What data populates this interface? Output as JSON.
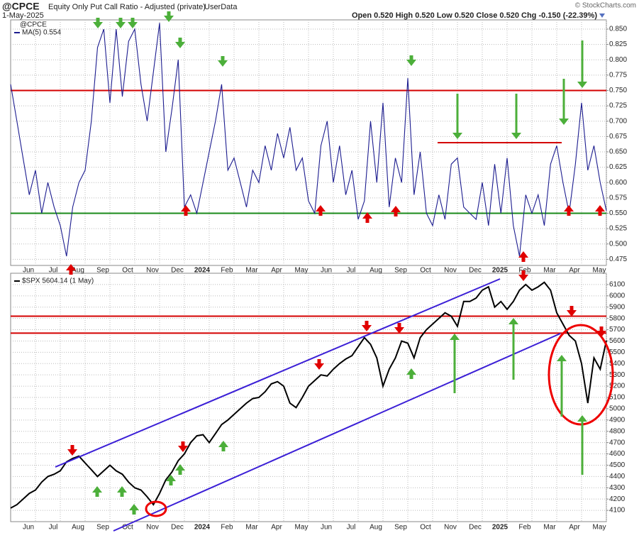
{
  "chart_data": [
    {
      "type": "line",
      "title": "@CPCE",
      "subtitle": "Equity Only Put Call Ratio - Adjusted (private)",
      "source": "UserData",
      "date": "1-May-2025",
      "credit": "© StockCharts.com",
      "ohlc": "Open 0.520 High 0.520 Low 0.520 Close 0.520 Chg -0.150 (-22.39%)",
      "legend_title": "@CPCE",
      "categories": [
        null,
        null,
        null,
        null,
        "Jun",
        null,
        null,
        null,
        "Jul",
        null,
        null,
        null,
        "Aug",
        null,
        null,
        null,
        "Sep",
        null,
        null,
        null,
        "Oct",
        null,
        null,
        null,
        "Nov",
        null,
        null,
        null,
        "Dec",
        null,
        null,
        null,
        "2024",
        null,
        null,
        null,
        "Feb",
        null,
        null,
        null,
        "Mar",
        null,
        null,
        null,
        "Apr",
        null,
        null,
        null,
        "May",
        null,
        null,
        null,
        "Jun",
        null,
        null,
        null,
        "Jul",
        null,
        null,
        null,
        "Aug",
        null,
        null,
        null,
        "Sep",
        null,
        null,
        null,
        "Oct",
        null,
        null,
        null,
        "Nov",
        null,
        null,
        null,
        "Dec",
        null,
        null,
        null,
        "2025",
        null,
        null,
        null,
        "Feb",
        null,
        null,
        null,
        "Mar",
        null,
        null,
        null,
        "Apr",
        null,
        null,
        null,
        "May"
      ],
      "series": [
        {
          "name": "MA(5) 0.554",
          "color": "#1c1c8f",
          "values": [
            0.76,
            0.7,
            0.64,
            0.58,
            0.62,
            0.55,
            0.6,
            0.56,
            0.53,
            0.48,
            0.56,
            0.6,
            0.62,
            0.7,
            0.82,
            0.85,
            0.73,
            0.85,
            0.74,
            0.83,
            0.85,
            0.76,
            0.7,
            0.78,
            0.86,
            0.65,
            0.72,
            0.8,
            0.56,
            0.58,
            0.55,
            0.6,
            0.65,
            0.7,
            0.76,
            0.62,
            0.64,
            0.6,
            0.56,
            0.62,
            0.6,
            0.66,
            0.62,
            0.68,
            0.64,
            0.69,
            0.62,
            0.64,
            0.57,
            0.55,
            0.66,
            0.7,
            0.6,
            0.66,
            0.58,
            0.62,
            0.54,
            0.57,
            0.7,
            0.6,
            0.73,
            0.56,
            0.64,
            0.6,
            0.77,
            0.58,
            0.65,
            0.55,
            0.53,
            0.58,
            0.54,
            0.63,
            0.64,
            0.56,
            0.55,
            0.54,
            0.6,
            0.53,
            0.63,
            0.55,
            0.64,
            0.53,
            0.48,
            0.58,
            0.55,
            0.58,
            0.53,
            0.63,
            0.66,
            0.6,
            0.55,
            0.63,
            0.73,
            0.62,
            0.66,
            0.6,
            0.554
          ]
        }
      ],
      "reference_lines": [
        {
          "value": 0.75,
          "color": "#d40000"
        },
        {
          "value": 0.55,
          "color": "#1a8a1a"
        }
      ],
      "ylim": [
        0.465,
        0.865
      ],
      "yticks": [
        {
          "value": 0.475,
          "label": "0.475"
        },
        {
          "value": 0.5,
          "label": "0.500"
        },
        0.525,
        {
          "value": 0.55,
          "label": "0.550"
        },
        0.575,
        {
          "value": 0.6,
          "label": "0.600"
        },
        0.625,
        {
          "value": 0.65,
          "label": "0.650"
        },
        0.675,
        {
          "value": 0.7,
          "label": "0.700"
        },
        0.725,
        {
          "value": 0.75,
          "label": "0.750"
        },
        0.775,
        {
          "value": 0.8,
          "label": "0.800"
        },
        0.825,
        {
          "value": 0.85,
          "label": "0.850"
        }
      ],
      "grid": true
    },
    {
      "type": "line",
      "categories": [
        null,
        null,
        null,
        null,
        "Jun",
        null,
        null,
        null,
        "Jul",
        null,
        null,
        null,
        "Aug",
        null,
        null,
        null,
        "Sep",
        null,
        null,
        null,
        "Oct",
        null,
        null,
        null,
        "Nov",
        null,
        null,
        null,
        "Dec",
        null,
        null,
        null,
        "2024",
        null,
        null,
        null,
        "Feb",
        null,
        null,
        null,
        "Mar",
        null,
        null,
        null,
        "Apr",
        null,
        null,
        null,
        "May",
        null,
        null,
        null,
        "Jun",
        null,
        null,
        null,
        "Jul",
        null,
        null,
        null,
        "Aug",
        null,
        null,
        null,
        "Sep",
        null,
        null,
        null,
        "Oct",
        null,
        null,
        null,
        "Nov",
        null,
        null,
        null,
        "Dec",
        null,
        null,
        null,
        "2025",
        null,
        null,
        null,
        "Feb",
        null,
        null,
        null,
        "Mar",
        null,
        null,
        null,
        "Apr",
        null,
        null,
        null,
        "May"
      ],
      "series": [
        {
          "name": "$SPX 5604.14 (1 May)",
          "color": "#000000",
          "values": [
            4120,
            4150,
            4200,
            4250,
            4280,
            4350,
            4400,
            4420,
            4450,
            4530,
            4560,
            4580,
            4520,
            4460,
            4400,
            4450,
            4500,
            4450,
            4420,
            4350,
            4300,
            4280,
            4220,
            4150,
            4250,
            4370,
            4440,
            4540,
            4600,
            4700,
            4760,
            4770,
            4700,
            4780,
            4860,
            4900,
            4950,
            5000,
            5050,
            5090,
            5100,
            5150,
            5220,
            5240,
            5200,
            5050,
            5010,
            5100,
            5200,
            5250,
            5300,
            5290,
            5350,
            5400,
            5440,
            5470,
            5550,
            5630,
            5570,
            5450,
            5200,
            5350,
            5450,
            5600,
            5580,
            5450,
            5630,
            5700,
            5750,
            5800,
            5850,
            5820,
            5730,
            5950,
            5950,
            5980,
            6050,
            6080,
            5900,
            5950,
            5880,
            5950,
            6050,
            6100,
            6050,
            6080,
            6120,
            6050,
            5850,
            5750,
            5650,
            5600,
            5400,
            5050,
            5450,
            5350,
            5604.14
          ]
        }
      ],
      "reference_lines": [
        {
          "value": 5820,
          "color": "#d40000"
        },
        {
          "value": 5670,
          "color": "#d40000"
        }
      ],
      "ylim": [
        4000,
        6200
      ],
      "yticks": [
        4100,
        4200,
        4300,
        4400,
        4500,
        4600,
        4700,
        4800,
        4900,
        5000,
        5100,
        5200,
        5300,
        5400,
        5500,
        5600,
        5700,
        5800,
        5900,
        6000,
        6100
      ],
      "grid": true
    }
  ]
}
